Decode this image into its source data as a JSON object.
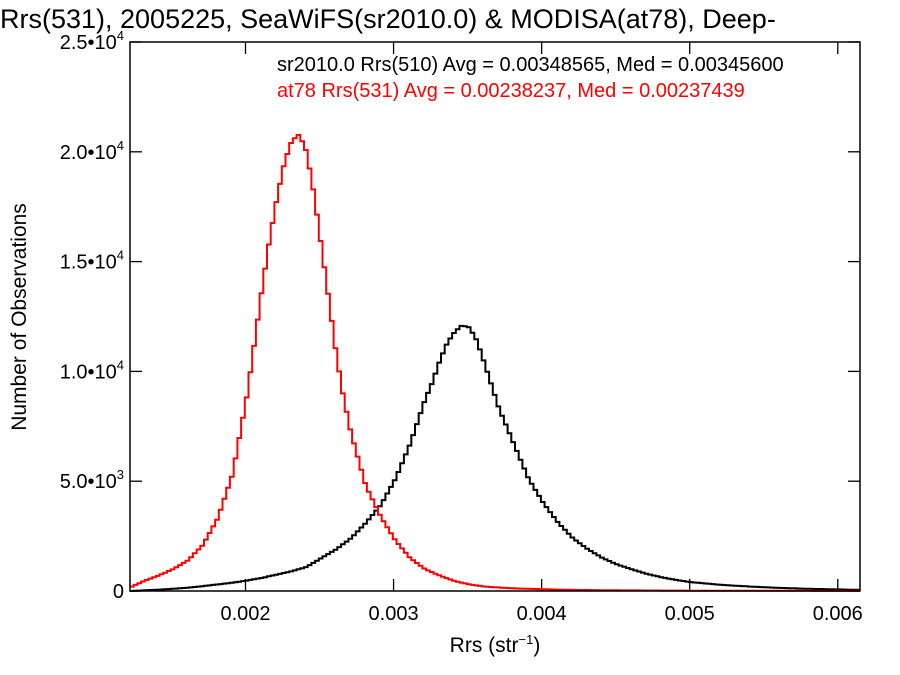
{
  "chart_data": {
    "type": "line",
    "title": "Rrs(531), 2005225, SeaWiFS(sr2010.0) & MODISA(at78), Deep-",
    "xlabel": "Rrs (str",
    "xlabel_sup": "−1",
    "xlabel_end": ")",
    "ylabel": "Number of Observations",
    "xlim": [
      0.00122,
      0.00615
    ],
    "ylim": [
      0,
      25000
    ],
    "x_ticks": [
      {
        "value": 0.002,
        "label": "0.002"
      },
      {
        "value": 0.003,
        "label": "0.003"
      },
      {
        "value": 0.004,
        "label": "0.004"
      },
      {
        "value": 0.005,
        "label": "0.005"
      },
      {
        "value": 0.006,
        "label": "0.006"
      }
    ],
    "y_ticks": [
      {
        "value": 0,
        "mant": "0",
        "exp": ""
      },
      {
        "value": 5000,
        "mant": "5.0•10",
        "exp": "3"
      },
      {
        "value": 10000,
        "mant": "1.0•10",
        "exp": "4"
      },
      {
        "value": 15000,
        "mant": "1.5•10",
        "exp": "4"
      },
      {
        "value": 20000,
        "mant": "2.0•10",
        "exp": "4"
      },
      {
        "value": 25000,
        "mant": "2.5•10",
        "exp": "4"
      }
    ],
    "grid": false,
    "series": [
      {
        "name": "sr2010.0 Rrs(510) Avg = 0.00348565, Med = 0.00345600",
        "color": "#000000",
        "x": [
          0.00122,
          0.0013,
          0.0014,
          0.0015,
          0.0016,
          0.0017,
          0.0018,
          0.0019,
          0.002,
          0.0021,
          0.0022,
          0.0023,
          0.0024,
          0.0025,
          0.0026,
          0.0027,
          0.0028,
          0.0029,
          0.003,
          0.0031,
          0.0032,
          0.00325,
          0.0033,
          0.00335,
          0.0034,
          0.00345,
          0.0035,
          0.00355,
          0.0036,
          0.0037,
          0.0038,
          0.0039,
          0.004,
          0.0041,
          0.0042,
          0.0043,
          0.0044,
          0.0045,
          0.0046,
          0.0047,
          0.0048,
          0.0049,
          0.005,
          0.0052,
          0.0054,
          0.0056,
          0.0058,
          0.006,
          0.00615
        ],
        "y": [
          0,
          30,
          60,
          100,
          150,
          220,
          300,
          380,
          480,
          600,
          750,
          900,
          1100,
          1500,
          1900,
          2400,
          3100,
          3900,
          5100,
          6700,
          8700,
          9500,
          10500,
          11300,
          11800,
          12100,
          12000,
          11400,
          10400,
          8300,
          6700,
          5100,
          4000,
          3100,
          2400,
          1900,
          1500,
          1200,
          980,
          780,
          620,
          500,
          400,
          280,
          200,
          140,
          100,
          70,
          50
        ]
      },
      {
        "name": "at78 Rrs(531) Avg = 0.00238237, Med = 0.00237439",
        "color": "#ff0000",
        "x": [
          0.00122,
          0.0013,
          0.0014,
          0.0015,
          0.0016,
          0.0017,
          0.0018,
          0.0019,
          0.002,
          0.0021,
          0.00215,
          0.0022,
          0.00225,
          0.0023,
          0.00235,
          0.0024,
          0.00245,
          0.0025,
          0.00255,
          0.0026,
          0.00265,
          0.0027,
          0.0028,
          0.0029,
          0.003,
          0.0031,
          0.0032,
          0.0033,
          0.0034,
          0.0035,
          0.0036,
          0.0038,
          0.004,
          0.0042,
          0.0045,
          0.0048,
          0.005,
          0.0055,
          0.006,
          0.00615
        ],
        "y": [
          200,
          450,
          700,
          1000,
          1400,
          2100,
          3300,
          5300,
          9000,
          13800,
          16000,
          17900,
          19500,
          20500,
          20800,
          20000,
          18100,
          15700,
          13300,
          10800,
          8800,
          7200,
          4800,
          3400,
          2300,
          1500,
          1000,
          700,
          450,
          300,
          200,
          120,
          80,
          50,
          30,
          20,
          15,
          10,
          5,
          5
        ]
      }
    ]
  }
}
